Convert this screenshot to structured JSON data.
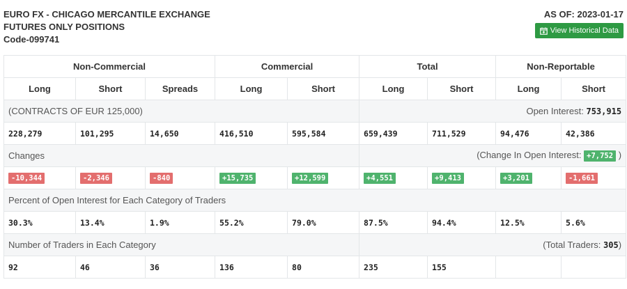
{
  "header": {
    "title_line1": "EURO FX - CHICAGO MERCANTILE EXCHANGE",
    "title_line2": "FUTURES ONLY POSITIONS",
    "code": "Code-099741",
    "as_of": "AS OF: 2023-01-17",
    "historical_button": "View Historical Data"
  },
  "groups": {
    "noncommercial": "Non-Commercial",
    "commercial": "Commercial",
    "total": "Total",
    "nonreportable": "Non-Reportable"
  },
  "columns": [
    "Long",
    "Short",
    "Spreads",
    "Long",
    "Short",
    "Long",
    "Short",
    "Long",
    "Short"
  ],
  "contracts": {
    "label": "(CONTRACTS OF EUR 125,000)",
    "open_interest_label": "Open Interest:",
    "open_interest_value": "753,915"
  },
  "positions": [
    "228,279",
    "101,295",
    "14,650",
    "416,510",
    "595,584",
    "659,439",
    "711,529",
    "94,476",
    "42,386"
  ],
  "changes": {
    "label": "Changes",
    "oi_change_prefix": "(Change In Open Interest:",
    "oi_change_value": "+7,752",
    "oi_change_suffix": ")",
    "values": [
      "-10,344",
      "-2,346",
      "-840",
      "+15,735",
      "+12,599",
      "+4,551",
      "+9,413",
      "+3,201",
      "-1,661"
    ],
    "colors": {
      "negative": "#e36e6e",
      "positive": "#4fb36d"
    }
  },
  "percent": {
    "label": "Percent of Open Interest for Each Category of Traders",
    "values": [
      "30.3%",
      "13.4%",
      "1.9%",
      "55.2%",
      "79.0%",
      "87.5%",
      "94.4%",
      "12.5%",
      "5.6%"
    ]
  },
  "traders": {
    "label": "Number of Traders in Each Category",
    "total_prefix": "(Total Traders:",
    "total_value": "305",
    "total_suffix": ")",
    "values": [
      "92",
      "46",
      "36",
      "136",
      "80",
      "235",
      "155",
      "",
      ""
    ]
  },
  "accent_color": "#2e9a43"
}
